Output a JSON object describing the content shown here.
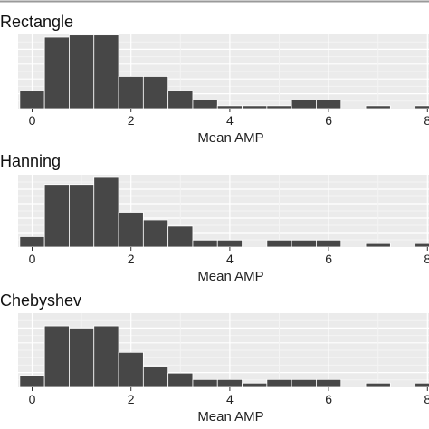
{
  "colors": {
    "panel_bg": "#ebebeb",
    "grid_major": "#ffffff",
    "grid_minor": "#f4f4f4",
    "bar_fill": "#474747",
    "bar_stroke": "#ffffff",
    "tick_mark": "#333333",
    "top_rule": "#9a9a9a"
  },
  "chart_data": [
    {
      "type": "bar",
      "title": "Rectangle",
      "xlabel": "Mean AMP",
      "ylabel": "",
      "bin_width": 0.5,
      "bin_starts": [
        -0.25,
        0.25,
        0.75,
        1.25,
        1.75,
        2.25,
        2.75,
        3.25,
        3.75,
        4.25,
        4.75,
        5.25,
        5.75,
        6.25,
        6.75,
        7.25,
        7.75
      ],
      "values": [
        0.25,
        1.0,
        1.03,
        1.03,
        0.45,
        0.45,
        0.25,
        0.12,
        0.04,
        0.04,
        0.04,
        0.12,
        0.12,
        0.0,
        0.04,
        0.0,
        0.04
      ],
      "xlim": [
        -0.3,
        8.0
      ],
      "ylim": [
        0,
        1.0
      ],
      "xticks": [
        0,
        2,
        4,
        6,
        8
      ],
      "xtick_labels": [
        "0",
        "2",
        "4",
        "6",
        "8"
      ],
      "grid": true
    },
    {
      "type": "bar",
      "title": "Hanning",
      "xlabel": "Mean AMP",
      "ylabel": "",
      "bin_width": 0.5,
      "bin_starts": [
        -0.25,
        0.25,
        0.75,
        1.25,
        1.75,
        2.25,
        2.75,
        3.25,
        3.75,
        4.25,
        4.75,
        5.25,
        5.75,
        6.25,
        6.75,
        7.25,
        7.75
      ],
      "values": [
        0.15,
        0.9,
        0.9,
        1.0,
        0.5,
        0.39,
        0.3,
        0.1,
        0.1,
        0.0,
        0.1,
        0.1,
        0.1,
        0.0,
        0.05,
        0.0,
        0.05
      ],
      "xlim": [
        -0.3,
        8.0
      ],
      "ylim": [
        0,
        1.0
      ],
      "xticks": [
        0,
        2,
        4,
        6,
        8
      ],
      "xtick_labels": [
        "0",
        "2",
        "4",
        "6",
        "8"
      ],
      "grid": true
    },
    {
      "type": "bar",
      "title": "Chebyshev",
      "xlabel": "Mean AMP",
      "ylabel": "",
      "bin_width": 0.5,
      "bin_starts": [
        -0.25,
        0.25,
        0.75,
        1.25,
        1.75,
        2.25,
        2.75,
        3.25,
        3.75,
        4.25,
        4.75,
        5.25,
        5.75,
        6.25,
        6.75,
        7.25,
        7.75
      ],
      "values": [
        0.17,
        0.86,
        0.83,
        0.86,
        0.49,
        0.29,
        0.2,
        0.11,
        0.11,
        0.06,
        0.11,
        0.11,
        0.11,
        0.0,
        0.06,
        0.0,
        0.06
      ],
      "xlim": [
        -0.3,
        8.0
      ],
      "ylim": [
        0,
        1.0
      ],
      "xticks": [
        0,
        2,
        4,
        6,
        8
      ],
      "xtick_labels": [
        "0",
        "2",
        "4",
        "6",
        "8"
      ],
      "grid": true
    }
  ]
}
